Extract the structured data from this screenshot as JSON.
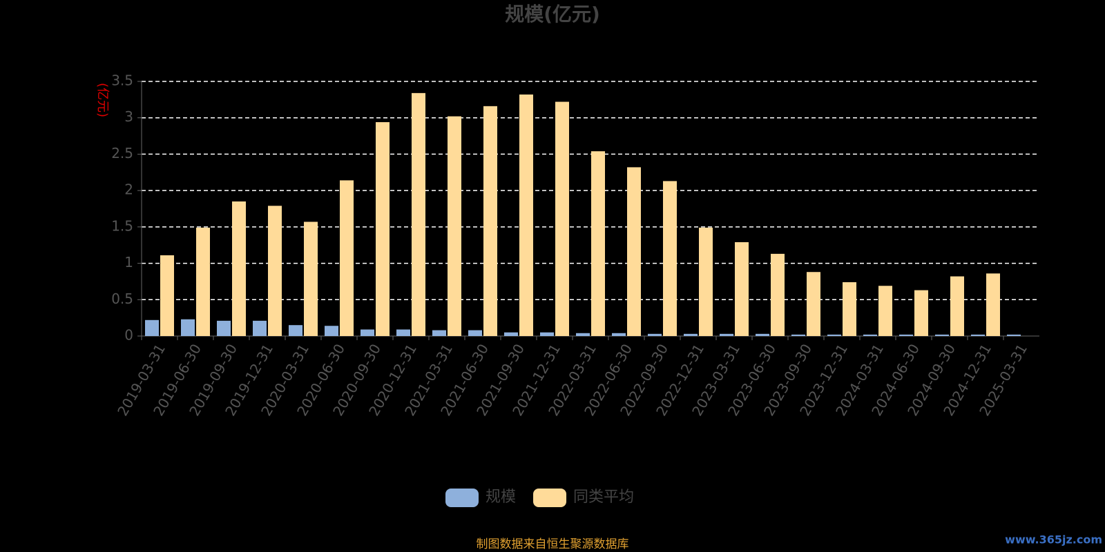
{
  "chart_data": {
    "type": "bar",
    "title": "规模(亿元)",
    "y_axis_label": "(亿元)",
    "categories": [
      "2019-03-31",
      "2019-06-30",
      "2019-09-30",
      "2019-12-31",
      "2020-03-31",
      "2020-06-30",
      "2020-09-30",
      "2020-12-31",
      "2021-03-31",
      "2021-06-30",
      "2021-09-30",
      "2021-12-31",
      "2022-03-31",
      "2022-06-30",
      "2022-09-30",
      "2022-12-31",
      "2023-03-31",
      "2023-06-30",
      "2023-09-30",
      "2023-12-31",
      "2024-03-31",
      "2024-06-30",
      "2024-09-30",
      "2024-12-31",
      "2025-03-31"
    ],
    "series": [
      {
        "name": "规模",
        "color": "#8eb0dc",
        "values": [
          0.22,
          0.23,
          0.21,
          0.21,
          0.15,
          0.14,
          0.09,
          0.09,
          0.08,
          0.08,
          0.05,
          0.05,
          0.04,
          0.04,
          0.03,
          0.03,
          0.03,
          0.03,
          0.02,
          0.02,
          0.02,
          0.02,
          0.02,
          0.02,
          0.02
        ]
      },
      {
        "name": "同类平均",
        "color": "#ffdb99",
        "values": [
          1.11,
          1.49,
          1.85,
          1.79,
          1.57,
          2.14,
          2.94,
          3.34,
          3.02,
          3.16,
          3.32,
          3.22,
          2.54,
          2.32,
          2.13,
          1.49,
          1.29,
          1.13,
          0.88,
          0.74,
          0.69,
          0.63,
          0.82,
          0.86,
          null
        ]
      }
    ],
    "ylim": [
      0,
      3.5
    ],
    "yticks": [
      0,
      0.5,
      1,
      1.5,
      2,
      2.5,
      3,
      3.5
    ],
    "grid": true,
    "source_note": "制图数据来自恒生聚源数据库",
    "watermark": "www.365jz.com"
  }
}
